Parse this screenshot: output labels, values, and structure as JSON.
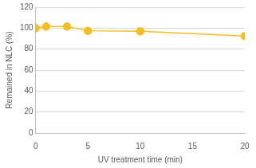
{
  "chart_data": {
    "type": "line",
    "x_label": "UV treatment time (min)",
    "y_label": "Remained in NLC (%)",
    "x": [
      0,
      1,
      3,
      5,
      10,
      20
    ],
    "values": [
      100,
      101.5,
      101.5,
      97.5,
      97,
      92.5
    ],
    "color": "#f5bd1f",
    "marker": "circle",
    "xlim": [
      0,
      20
    ],
    "xticks": [
      0,
      5,
      10,
      15,
      20
    ],
    "ylim": [
      0,
      120
    ],
    "yticks": [
      0,
      20,
      40,
      60,
      80,
      100,
      120
    ],
    "grid": true
  }
}
